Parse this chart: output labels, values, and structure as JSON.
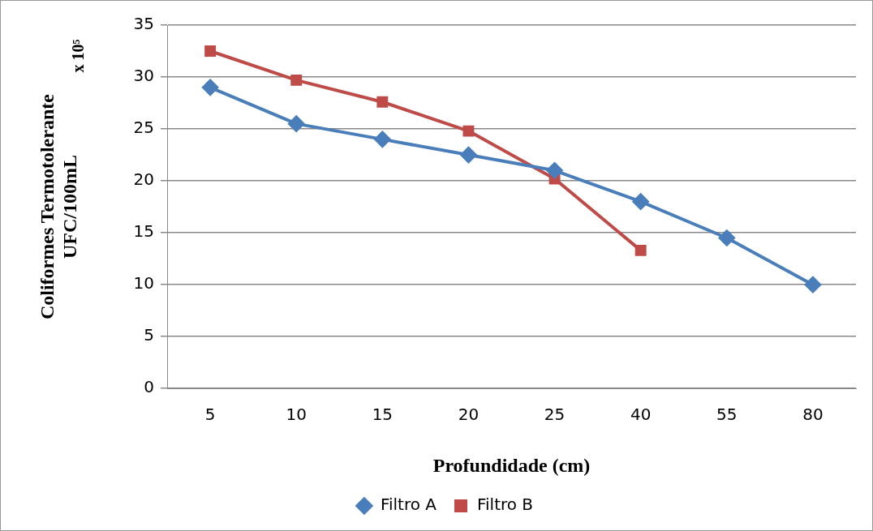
{
  "chart_data": {
    "type": "line",
    "xlabel": "Profundidade (cm)",
    "ylabel": "Coliformes Termotolerante\nUFC/100mL",
    "annotations": [
      "x 10⁵"
    ],
    "categories": [
      "5",
      "10",
      "15",
      "20",
      "25",
      "40",
      "55",
      "80"
    ],
    "series": [
      {
        "name": "Filtro A",
        "color": "#4a7ebb",
        "marker": "diamond",
        "values": [
          29,
          25.5,
          24,
          22.5,
          21,
          18,
          14.5,
          10
        ]
      },
      {
        "name": "Filtro B",
        "color": "#be4b48",
        "marker": "square",
        "values": [
          32.5,
          29.7,
          27.6,
          24.8,
          20.2,
          13.3,
          null,
          null
        ]
      }
    ],
    "ylim": [
      0,
      35
    ],
    "yticks": [
      0,
      5,
      10,
      15,
      20,
      25,
      30,
      35
    ],
    "grid": "y",
    "legend": "bottom"
  }
}
